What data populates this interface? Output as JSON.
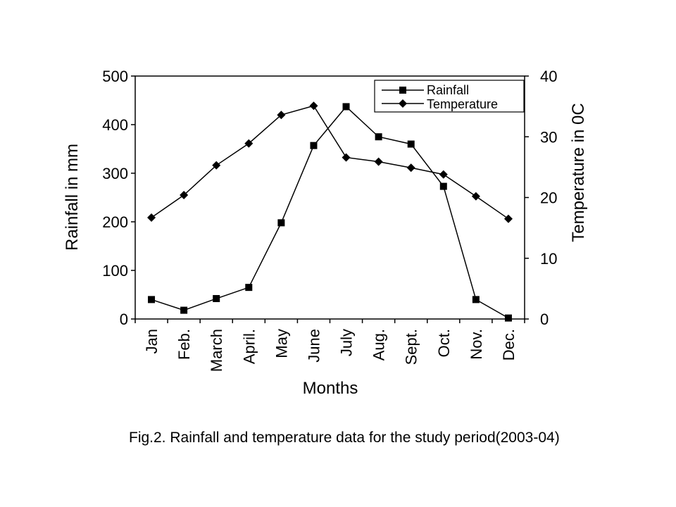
{
  "chart_data": {
    "type": "line",
    "categories": [
      "Jan",
      "Feb.",
      "March",
      "April.",
      "May",
      "June",
      "July",
      "Aug.",
      "Sept.",
      "Oct.",
      "Nov.",
      "Dec."
    ],
    "xlabel": "Months",
    "ylabel": "Rainfall in mm",
    "y2label": "Temperature in 0C",
    "ylim": [
      0,
      500
    ],
    "y2lim": [
      0,
      40
    ],
    "yticks": [
      "0",
      "100",
      "200",
      "300",
      "400",
      "500"
    ],
    "y2ticks": [
      "0",
      "10",
      "20",
      "30",
      "40"
    ],
    "grid": false,
    "legend_position": "top-right",
    "series": [
      {
        "name": "Rainfall",
        "axis": "left",
        "marker": "square",
        "color": "#000000",
        "values": [
          40,
          18,
          42,
          65,
          198,
          357,
          437,
          375,
          360,
          273,
          40,
          2
        ]
      },
      {
        "name": "Temperature",
        "axis": "right",
        "marker": "diamond",
        "color": "#000000",
        "values": [
          16.7,
          20.4,
          25.3,
          28.9,
          33.6,
          35.1,
          26.6,
          25.9,
          24.9,
          23.8,
          20.2,
          16.5
        ]
      }
    ]
  },
  "caption": "Fig.2. Rainfall and temperature data for the study period(2003-04)"
}
